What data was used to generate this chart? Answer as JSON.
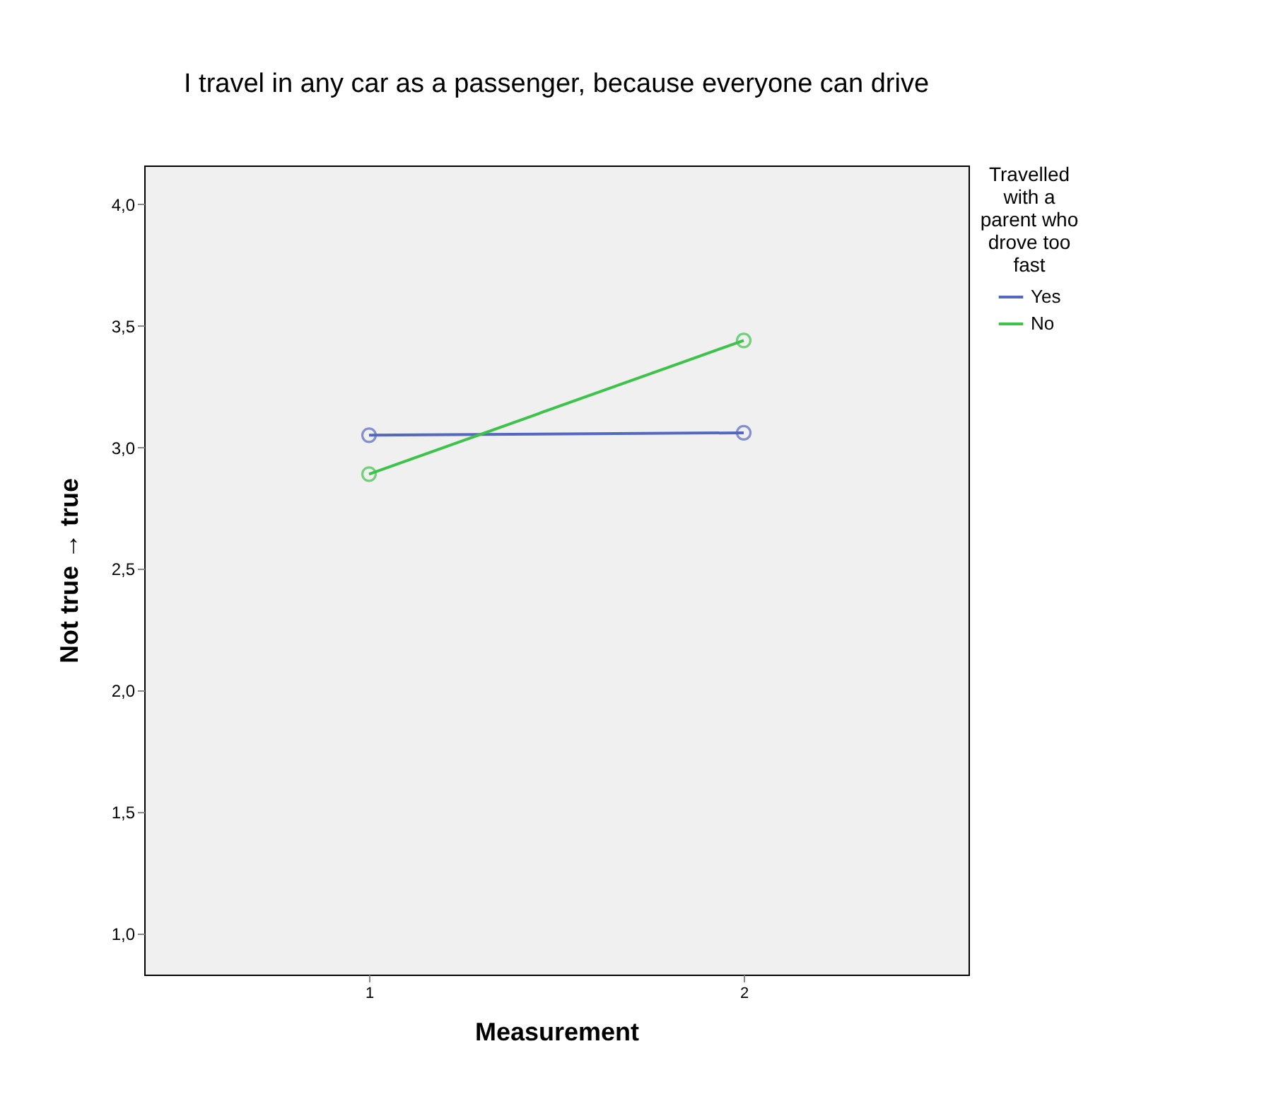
{
  "chart_data": {
    "type": "line",
    "title": "I travel in any car as a passenger, because everyone can drive",
    "xlabel": "Measurement",
    "ylabel": "Not true → true",
    "legend_title": "Travelled with a parent who drove too fast",
    "x": [
      1,
      2
    ],
    "series": [
      {
        "name": "Yes",
        "color": "#5468c0",
        "values": [
          3.05,
          3.06
        ]
      },
      {
        "name": "No",
        "color": "#3ec34a",
        "values": [
          2.89,
          3.44
        ]
      }
    ],
    "xlim": [
      0.4,
      2.6
    ],
    "xticks": [
      1,
      2
    ],
    "ylim": [
      0.83,
      4.16
    ],
    "yticks": [
      {
        "value": 1.0,
        "label": "1,0"
      },
      {
        "value": 1.5,
        "label": "1,5"
      },
      {
        "value": 2.0,
        "label": "2,0"
      },
      {
        "value": 2.5,
        "label": "2,5"
      },
      {
        "value": 3.0,
        "label": "3,0"
      },
      {
        "value": 3.5,
        "label": "3,5"
      },
      {
        "value": 4.0,
        "label": "4,0"
      }
    ],
    "grid": false,
    "legend": "top right",
    "marker": "circle",
    "line_style": "solid"
  }
}
